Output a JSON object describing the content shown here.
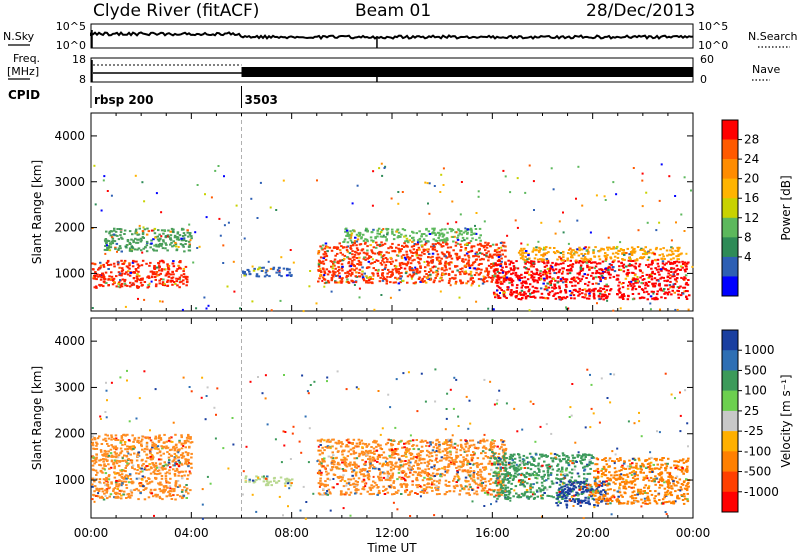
{
  "header": {
    "title": "Clyde River (fitACF)",
    "beam": "Beam 01",
    "date": "28/Dec/2013"
  },
  "top_panels": {
    "nsky_label": "N.Sky",
    "nsearch_label": "N.Search",
    "noise_ticks": [
      "10^5",
      "10^0"
    ],
    "freq_label_1": "Freq.",
    "freq_label_2": "[MHz]",
    "freq_ticks": [
      "18",
      "8"
    ],
    "nave_label": "Nave",
    "nave_ticks": [
      "60",
      "0"
    ],
    "cpid_label": "CPID",
    "cpid_entries": [
      {
        "start_hour": 0.0,
        "text": "rbsp 200"
      },
      {
        "start_hour": 6.0,
        "text": "3503"
      }
    ],
    "mode_change_hour": 6.0,
    "marker_hour": 11.4
  },
  "chart_data": [
    {
      "type": "heatmap",
      "panel": "power",
      "ylabel": "Slant Range [km]",
      "xlim": [
        0,
        24
      ],
      "ylim": [
        180,
        4500
      ],
      "yticks": [
        "1000",
        "2000",
        "3000",
        "4000"
      ],
      "colorbar": {
        "label": "Power [dB]",
        "ticks": [
          "28",
          "24",
          "20",
          "16",
          "12",
          "8",
          "4"
        ],
        "colors": [
          "#ff0000",
          "#ff5a00",
          "#ff8c00",
          "#ffb400",
          "#c8d200",
          "#5cb85c",
          "#2e8b57",
          "#2d5fb4",
          "#0000ff"
        ]
      },
      "regions": [
        {
          "t0": 0.0,
          "t1": 3.8,
          "r0": 700,
          "r1": 1300,
          "color": "#ff2000"
        },
        {
          "t0": 0.5,
          "t1": 4.0,
          "r0": 1500,
          "r1": 2000,
          "color": "#4a9e5a"
        },
        {
          "t0": 6.0,
          "t1": 8.0,
          "r0": 950,
          "r1": 1150,
          "color": "#2d5fb4"
        },
        {
          "t0": 9.0,
          "t1": 16.5,
          "r0": 800,
          "r1": 1700,
          "color": "#ff3000"
        },
        {
          "t0": 10.0,
          "t1": 15.5,
          "r0": 1700,
          "r1": 2000,
          "color": "#5cb85c"
        },
        {
          "t0": 16.0,
          "t1": 23.8,
          "r0": 450,
          "r1": 1300,
          "color": "#ff0000"
        },
        {
          "t0": 17.0,
          "t1": 23.5,
          "r0": 1300,
          "r1": 1600,
          "color": "#ffa000"
        }
      ]
    },
    {
      "type": "heatmap",
      "panel": "velocity",
      "xlabel": "Time UT",
      "ylabel": "Slant Range [km]",
      "xlim": [
        0,
        24
      ],
      "ylim": [
        180,
        4500
      ],
      "xticks": [
        "00:00",
        "04:00",
        "08:00",
        "12:00",
        "16:00",
        "20:00",
        "00:00"
      ],
      "yticks": [
        "1000",
        "2000",
        "3000",
        "4000"
      ],
      "colorbar": {
        "label": "Velocity [m s⁻¹]",
        "ticks": [
          "1000",
          "500",
          "100",
          "25",
          "-25",
          "-100",
          "-500",
          "-1000"
        ],
        "colors": [
          "#1a3fa0",
          "#2e6fb4",
          "#3c9a5a",
          "#6ccf4f",
          "#c8c8c8",
          "#ffb000",
          "#ff8000",
          "#ff4000",
          "#ff0000"
        ]
      },
      "regions": [
        {
          "t0": 0.0,
          "t1": 4.0,
          "r0": 600,
          "r1": 2000,
          "color": "#ff8c20"
        },
        {
          "t0": 6.0,
          "t1": 8.0,
          "r0": 900,
          "r1": 1100,
          "color": "#b8d890"
        },
        {
          "t0": 9.0,
          "t1": 16.5,
          "r0": 700,
          "r1": 1900,
          "color": "#ff8c20"
        },
        {
          "t0": 16.0,
          "t1": 20.0,
          "r0": 600,
          "r1": 1600,
          "color": "#3c9a5a"
        },
        {
          "t0": 18.5,
          "t1": 20.5,
          "r0": 450,
          "r1": 1000,
          "color": "#1a3fa0"
        },
        {
          "t0": 20.0,
          "t1": 23.8,
          "r0": 500,
          "r1": 1500,
          "color": "#ff8000"
        }
      ]
    }
  ]
}
